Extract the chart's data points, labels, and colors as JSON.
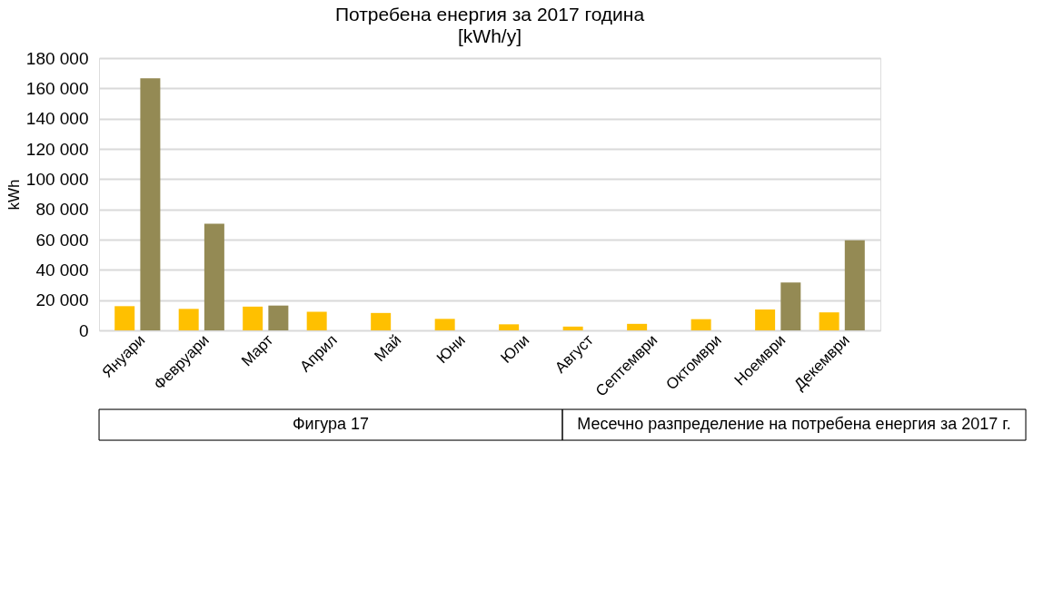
{
  "chart_data": {
    "type": "bar",
    "title": "Потребена енергия за 2017 година",
    "subtitle": "[kWh/y]",
    "ylabel": "kWh",
    "categories": [
      "Януари",
      "Февруари",
      "Март",
      "Април",
      "Май",
      "Юни",
      "Юли",
      "Август",
      "Септември",
      "Октомври",
      "Ноември",
      "Декември"
    ],
    "series": [
      {
        "color": "#ffc000",
        "values": [
          16000,
          14200,
          15700,
          12300,
          11500,
          7600,
          4000,
          2500,
          4300,
          7400,
          13800,
          11900
        ]
      },
      {
        "color": "#948a54",
        "values": [
          166600,
          70500,
          16400,
          0,
          null,
          null,
          null,
          null,
          null,
          0,
          31700,
          59500
        ]
      }
    ],
    "ylim": [
      0,
      180000
    ],
    "yticks": [
      0,
      {
        "value": 20000,
        "label": "20 000"
      },
      {
        "value": 40000,
        "label": "40 000"
      },
      {
        "value": 60000,
        "label": "60 000"
      },
      {
        "value": 80000,
        "label": "80 000"
      },
      {
        "value": 100000,
        "label": "100 000"
      },
      {
        "value": 120000,
        "label": "120 000"
      },
      {
        "value": 140000,
        "label": "140 000"
      },
      {
        "value": 160000,
        "label": "160 000"
      },
      {
        "value": 180000,
        "label": "180 000"
      }
    ],
    "grid": "y",
    "legend": false,
    "annotations": [
      "Фигура 17",
      "Месечно разпределение на потребена енергия за 2017 г."
    ]
  }
}
